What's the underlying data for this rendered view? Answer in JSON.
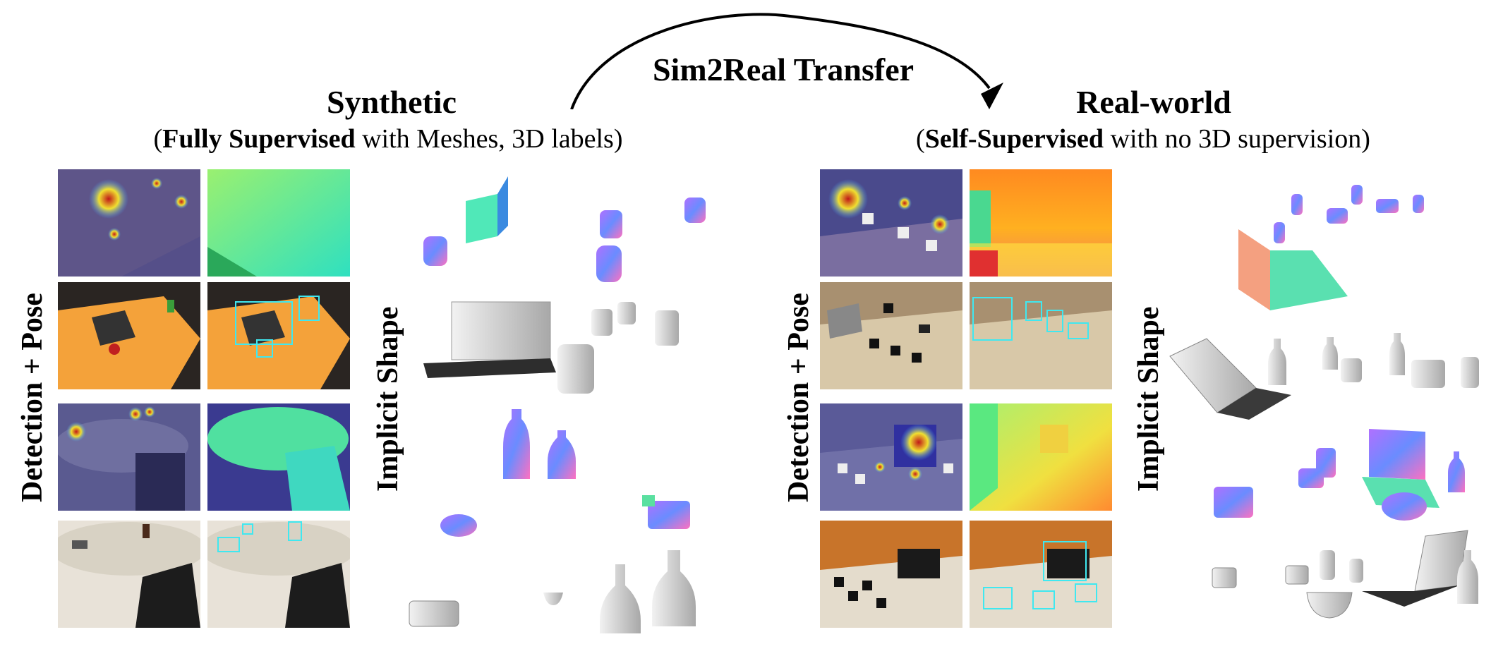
{
  "arrow": {
    "label": "Sim2Real Transfer"
  },
  "synthetic": {
    "title": "Synthetic",
    "subtitle_bold": "Fully Supervised",
    "subtitle_rest": " with Meshes, 3D labels",
    "left_label": "Detection + Pose",
    "right_label": "Implicit Shape"
  },
  "real": {
    "title": "Real-world",
    "subtitle_bold": "Self-Supervised",
    "subtitle_rest": " with no 3D supervision",
    "left_label": "Detection + Pose",
    "right_label": "Implicit Shape"
  },
  "colors": {
    "heatmap_bg": "#4a4a8c",
    "depth_green": "#4fe3a0",
    "table_orange": "#f4a23a",
    "box_cyan": "#3fe8f0",
    "mesh_gray": "#d0d0d0"
  }
}
